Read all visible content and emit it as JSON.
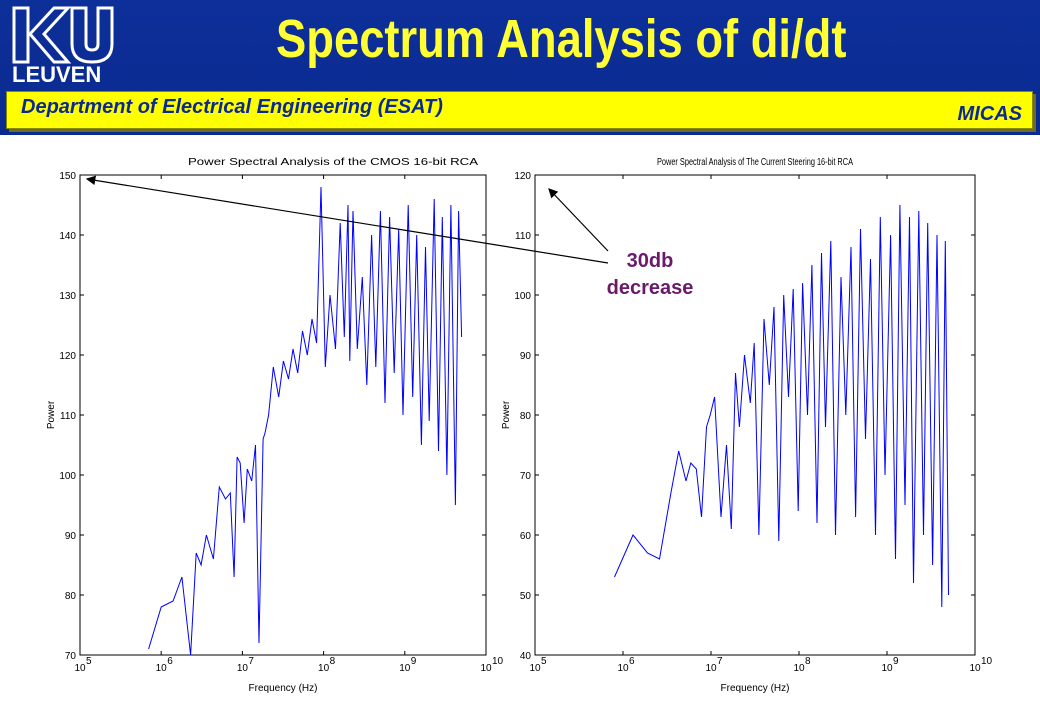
{
  "header": {
    "title": "Spectrum Analysis of di/dt",
    "logo_text": "LEUVEN",
    "department": "Department of Electrical Engineering (ESAT)",
    "group": "MICAS",
    "colors": {
      "header_bg": "#0d2f99",
      "title": "#ffff33",
      "banner": "#ffff00",
      "banner_text": "#0a2a8f"
    }
  },
  "annotation": {
    "line1": "30db",
    "line2": "decrease",
    "color": "#6b1a6b"
  },
  "chart_data": [
    {
      "type": "line",
      "title": "Power Spectral Analysis of the CMOS 16-bit RCA",
      "xlabel": "Frequency (Hz)",
      "ylabel": "Power",
      "xscale": "log",
      "xlim": [
        100000,
        10000000000
      ],
      "ylim": [
        70,
        150
      ],
      "x_ticks": [
        "5",
        "6",
        "7",
        "8",
        "9",
        "10"
      ],
      "x_tick_base": "10",
      "y_ticks": [
        "70",
        "80",
        "90",
        "100",
        "110",
        "120",
        "130",
        "140",
        "150"
      ],
      "series_color": "#0000ff",
      "series": [
        {
          "x": [
            700000.0,
            1000000.0,
            1400000.0,
            1800000.0,
            2300000.0,
            2700000.0,
            3100000.0,
            3600000.0,
            4400000.0,
            5200000.0,
            6200000.0,
            7100000.0,
            7900000.0,
            8600000.0,
            9400000.0,
            10500000.0,
            11500000.0,
            13000000.0,
            14500000.0,
            16000000.0,
            18000000.0,
            19000000.0,
            21000000.0,
            24000000.0,
            28000000.0,
            32000000.0,
            37000000.0,
            42000000.0,
            48000000.0,
            55000000.0,
            63000000.0,
            72000000.0,
            82000000.0,
            93000000.0,
            105000000.0,
            120000000.0,
            140000000.0,
            160000000.0,
            180000000.0,
            200000000.0,
            210000000.0,
            230000000.0,
            260000000.0,
            300000000.0,
            340000000.0,
            390000000.0,
            440000000.0,
            500000000.0,
            570000000.0,
            650000000.0,
            740000000.0,
            840000000.0,
            950000000.0,
            1100000000.0,
            1250000000.0,
            1400000000.0,
            1600000000.0,
            1800000000.0,
            2000000000.0,
            2300000000.0,
            2600000000.0,
            2900000000.0,
            3300000000.0,
            3700000000.0,
            4200000000.0,
            4600000000.0,
            5000000000.0
          ],
          "y": [
            71,
            78,
            79,
            83,
            70,
            87,
            85,
            90,
            86,
            98,
            96,
            97,
            83,
            103,
            102,
            92,
            101,
            99,
            105,
            72,
            106,
            107,
            110,
            118,
            113,
            119,
            116,
            121,
            117,
            124,
            120,
            126,
            122,
            148,
            118,
            130,
            121,
            142,
            123,
            145,
            119,
            144,
            121,
            133,
            115,
            140,
            118,
            144,
            112,
            143,
            117,
            141,
            110,
            145,
            113,
            140,
            105,
            138,
            109,
            146,
            104,
            143,
            100,
            145,
            95,
            144,
            123
          ]
        }
      ]
    },
    {
      "type": "line",
      "title": "Power Spectral Analysis of The Current Steering 16-bit RCA",
      "xlabel": "Frequency (Hz)",
      "ylabel": "Power",
      "xscale": "log",
      "xlim": [
        100000,
        10000000000
      ],
      "ylim": [
        40,
        120
      ],
      "x_ticks": [
        "5",
        "6",
        "7",
        "8",
        "9",
        "10"
      ],
      "x_tick_base": "10",
      "y_ticks": [
        "40",
        "50",
        "60",
        "70",
        "80",
        "90",
        "100",
        "110",
        "120"
      ],
      "series_color": "#0000ff",
      "series": [
        {
          "x": [
            800000.0,
            1300000.0,
            1900000.0,
            2600000.0,
            3500000.0,
            4300000.0,
            5200000.0,
            5900000.0,
            6800000.0,
            7800000.0,
            8900000.0,
            9800000.0,
            11000000.0,
            13000000.0,
            15000000.0,
            17000000.0,
            19000000.0,
            21000000.0,
            24000000.0,
            28000000.0,
            31000000.0,
            35000000.0,
            40000000.0,
            46000000.0,
            52000000.0,
            59000000.0,
            67000000.0,
            76000000.0,
            86000000.0,
            98000000.0,
            110000000.0,
            125000000.0,
            140000000.0,
            160000000.0,
            180000000.0,
            200000000.0,
            230000000.0,
            260000000.0,
            300000000.0,
            340000000.0,
            390000000.0,
            440000000.0,
            500000000.0,
            570000000.0,
            650000000.0,
            740000000.0,
            840000000.0,
            950000000.0,
            1100000000.0,
            1250000000.0,
            1400000000.0,
            1600000000.0,
            1800000000.0,
            2000000000.0,
            2300000000.0,
            2600000000.0,
            2900000000.0,
            3300000000.0,
            3700000000.0,
            4200000000.0,
            4600000000.0,
            5000000000.0
          ],
          "y": [
            53,
            60,
            57,
            56,
            67,
            74,
            69,
            72,
            71,
            63,
            78,
            80,
            83,
            63,
            75,
            61,
            87,
            78,
            90,
            82,
            92,
            60,
            96,
            85,
            98,
            59,
            100,
            83,
            101,
            64,
            102,
            80,
            105,
            62,
            107,
            78,
            109,
            60,
            103,
            80,
            108,
            63,
            111,
            76,
            106,
            60,
            113,
            70,
            110,
            56,
            115,
            65,
            113,
            52,
            114,
            60,
            112,
            55,
            110,
            48,
            109,
            50
          ]
        }
      ]
    }
  ]
}
